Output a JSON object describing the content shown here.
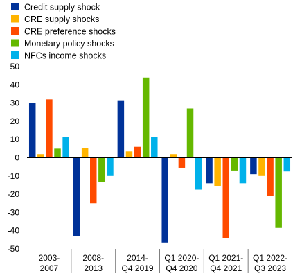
{
  "chart_data": {
    "type": "bar",
    "categories": [
      [
        "2003-",
        "2007"
      ],
      [
        "2008-",
        "2013"
      ],
      [
        "2014-",
        "Q4 2019"
      ],
      [
        "Q1 2020-",
        "Q4 2020"
      ],
      [
        "Q1 2021-",
        "Q4 2021"
      ],
      [
        "Q1 2022-",
        "Q3 2023"
      ]
    ],
    "series": [
      {
        "name": "Credit supply shock",
        "color": "#003299",
        "values": [
          30,
          -43,
          31.5,
          -46.5,
          -14,
          -9
        ]
      },
      {
        "name": "CRE supply shocks",
        "color": "#FFB400",
        "values": [
          2,
          5.5,
          3.5,
          2,
          -15.5,
          -10
        ]
      },
      {
        "name": "CRE preference shocks",
        "color": "#FF4B00",
        "values": [
          32,
          -25,
          6,
          -5.5,
          -44,
          -21
        ]
      },
      {
        "name": "Monetary policy shocks",
        "color": "#65B800",
        "values": [
          5,
          -13.5,
          44,
          27,
          -7,
          -38.5
        ]
      },
      {
        "name": "NFCs income shocks",
        "color": "#00B1EA",
        "values": [
          11.5,
          -10,
          11.5,
          -17.5,
          -14,
          -7.5
        ]
      }
    ],
    "yticks": [
      50,
      40,
      30,
      20,
      10,
      0,
      -10,
      -20,
      -30,
      -40,
      -50
    ],
    "ylim": [
      -50,
      50
    ],
    "legend_position": "top-left",
    "grid": false
  }
}
